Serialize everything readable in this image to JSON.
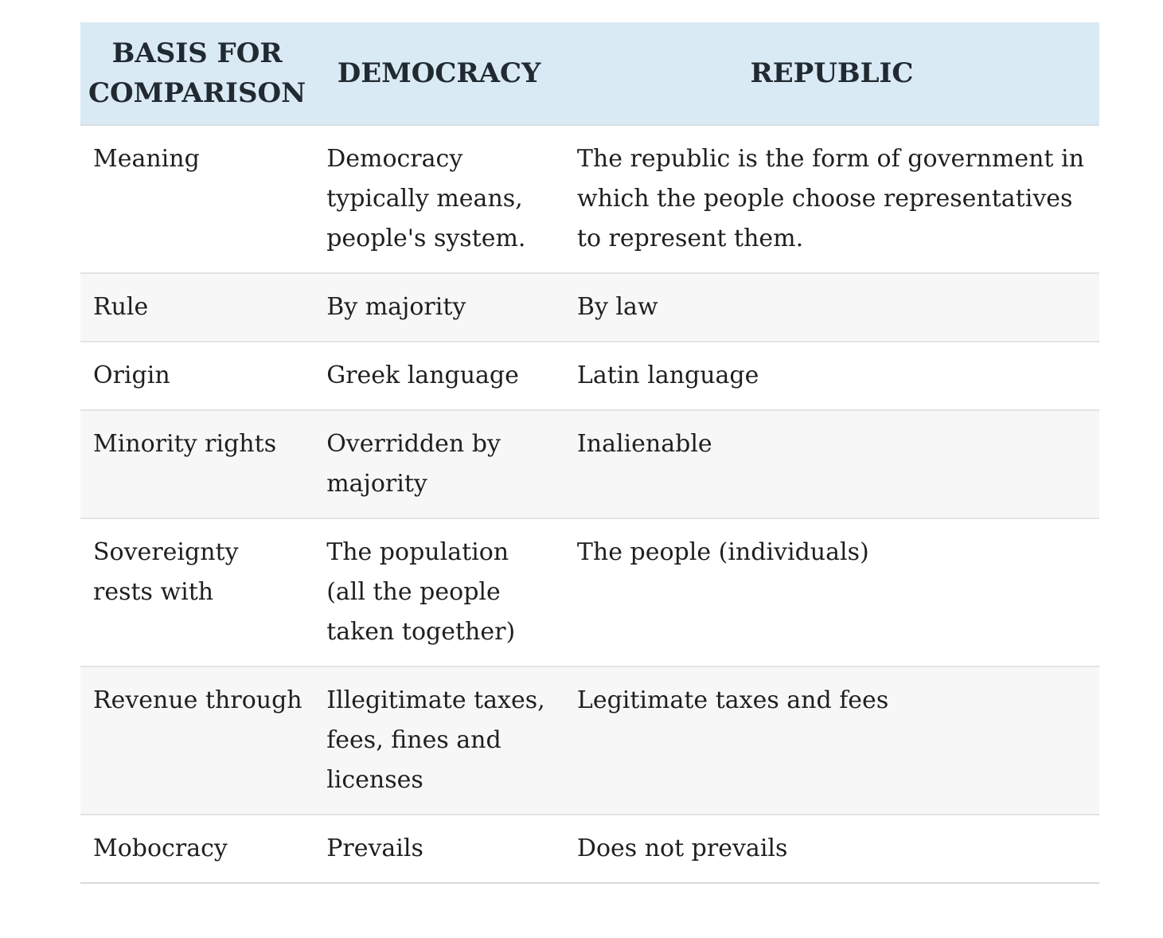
{
  "table": {
    "columns": [
      "BASIS FOR COMPARISON",
      "DEMOCRACY",
      "REPUBLIC"
    ],
    "rows": [
      {
        "basis": "Meaning",
        "democracy": "Democracy typically means, people's system.",
        "republic": "The republic is the form of government in which the people choose representatives to represent them."
      },
      {
        "basis": "Rule",
        "democracy": "By majority",
        "republic": "By law"
      },
      {
        "basis": "Origin",
        "democracy": "Greek language",
        "republic": "Latin language"
      },
      {
        "basis": "Minority rights",
        "democracy": "Overridden by majority",
        "republic": "Inalienable"
      },
      {
        "basis": "Sovereignty rests with",
        "democracy": "The population (all the people taken together)",
        "republic": "The people (individuals)"
      },
      {
        "basis": "Revenue through",
        "democracy": "Illegitimate taxes, fees, fines and licenses",
        "republic": "Legitimate taxes and fees"
      },
      {
        "basis": "Mobocracy",
        "democracy": "Prevails",
        "republic": "Does not prevails"
      }
    ],
    "colors": {
      "header_bg": "#d9eaf4",
      "stripe_bg": "#f7f7f7",
      "row_border": "#e3e3e3",
      "header_text": "#222a31",
      "body_text": "#1f1f1f"
    }
  }
}
